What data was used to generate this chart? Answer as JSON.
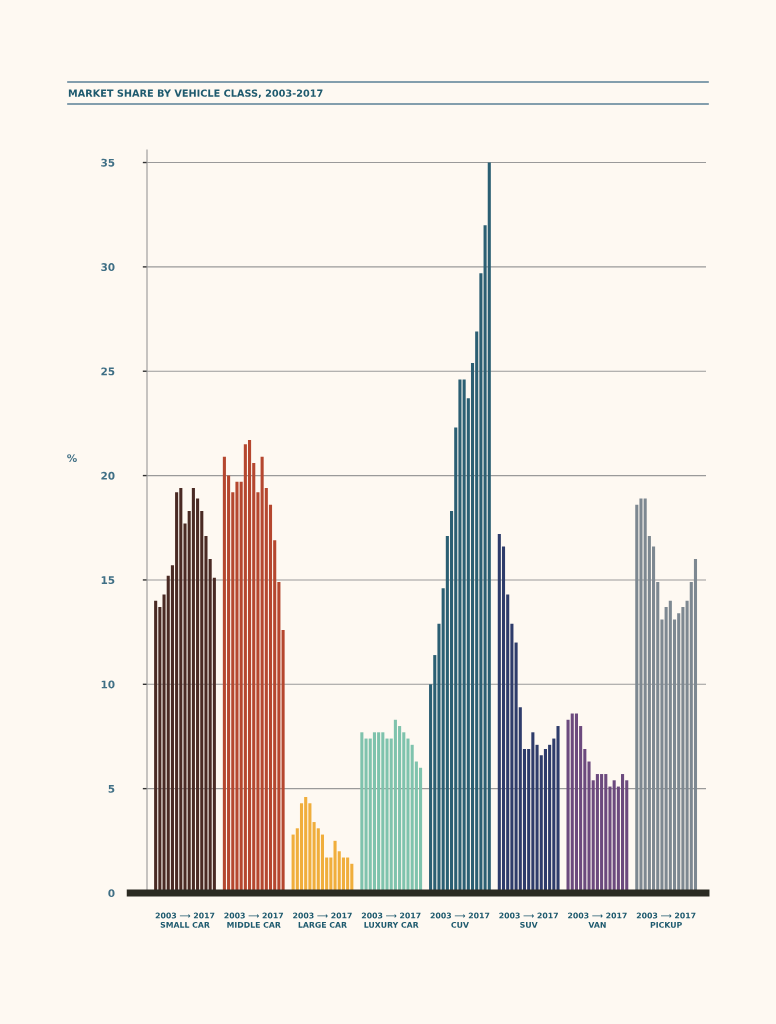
{
  "chart_data": {
    "type": "bar",
    "title": "MARKET SHARE BY VEHICLE CLASS, 2003-2017",
    "ylabel": "%",
    "categories": [
      "2003 ⟶ 2017\nSMALL CAR",
      "2003 ⟶ 2017\nMIDDLE CAR",
      "2003 ⟶ 2017\nLARGE CAR",
      "2003 ⟶ 2017\nLUXURY CAR",
      "2003 ⟶ 2017\nCUV",
      "2003 ⟶ 2017\nSUV",
      "2003 ⟶ 2017\nVAN",
      "2003 ⟶ 2017\nPICKUP"
    ],
    "ylim": [
      0,
      35.6
    ],
    "yticks": [
      0,
      5,
      10,
      15,
      20,
      25,
      30,
      35
    ],
    "grid": "y",
    "legend": false,
    "series": [
      {
        "colors": [
          "#4a2a24",
          "#b5472f",
          "#f0ae3c",
          "#7fc3ad",
          "#2b5f73",
          "#2e3c6b",
          "#6c4a7e",
          "#7d8891"
        ],
        "values": [
          14.0,
          20.9,
          2.8,
          7.7,
          10.0,
          17.2,
          8.3,
          18.6
        ]
      },
      {
        "colors": [
          "#4a2a24",
          "#b5472f",
          "#f0ae3c",
          "#7fc3ad",
          "#2b5f73",
          "#2e3c6b",
          "#6c4a7e",
          "#7d8891"
        ],
        "values": [
          13.7,
          20.0,
          3.1,
          7.4,
          11.4,
          16.6,
          8.6,
          18.9
        ]
      },
      {
        "colors": [
          "#4a2a24",
          "#b5472f",
          "#f0ae3c",
          "#7fc3ad",
          "#2b5f73",
          "#2e3c6b",
          "#6c4a7e",
          "#7d8891"
        ],
        "values": [
          14.3,
          19.2,
          4.3,
          7.4,
          12.9,
          14.3,
          8.6,
          18.9
        ]
      },
      {
        "colors": [
          "#4a2a24",
          "#b5472f",
          "#f0ae3c",
          "#7fc3ad",
          "#2b5f73",
          "#2e3c6b",
          "#6c4a7e",
          "#7d8891"
        ],
        "values": [
          15.2,
          19.7,
          4.6,
          7.7,
          14.6,
          12.9,
          8.0,
          17.1
        ]
      },
      {
        "colors": [
          "#4a2a24",
          "#b5472f",
          "#f0ae3c",
          "#7fc3ad",
          "#2b5f73",
          "#2e3c6b",
          "#6c4a7e",
          "#7d8891"
        ],
        "values": [
          15.7,
          19.7,
          4.3,
          7.7,
          17.1,
          12.0,
          6.9,
          16.6
        ]
      },
      {
        "colors": [
          "#4a2a24",
          "#b5472f",
          "#f0ae3c",
          "#7fc3ad",
          "#2b5f73",
          "#2e3c6b",
          "#6c4a7e",
          "#7d8891"
        ],
        "values": [
          19.2,
          21.5,
          3.4,
          7.7,
          18.3,
          8.9,
          6.3,
          14.9
        ]
      },
      {
        "colors": [
          "#4a2a24",
          "#b5472f",
          "#f0ae3c",
          "#7fc3ad",
          "#2b5f73",
          "#2e3c6b",
          "#6c4a7e",
          "#7d8891"
        ],
        "values": [
          19.4,
          21.7,
          3.1,
          7.4,
          22.3,
          6.9,
          5.4,
          13.1
        ]
      },
      {
        "colors": [
          "#4a2a24",
          "#b5472f",
          "#f0ae3c",
          "#7fc3ad",
          "#2b5f73",
          "#2e3c6b",
          "#6c4a7e",
          "#7d8891"
        ],
        "values": [
          17.7,
          20.6,
          2.8,
          7.4,
          24.6,
          6.9,
          5.7,
          13.7
        ]
      },
      {
        "colors": [
          "#4a2a24",
          "#b5472f",
          "#f0ae3c",
          "#7fc3ad",
          "#2b5f73",
          "#2e3c6b",
          "#6c4a7e",
          "#7d8891"
        ],
        "values": [
          18.3,
          19.2,
          1.7,
          8.3,
          24.6,
          7.7,
          5.7,
          14.0
        ]
      },
      {
        "colors": [
          "#4a2a24",
          "#b5472f",
          "#f0ae3c",
          "#7fc3ad",
          "#2b5f73",
          "#2e3c6b",
          "#6c4a7e",
          "#7d8891"
        ],
        "values": [
          19.4,
          20.9,
          1.7,
          8.0,
          23.7,
          7.1,
          5.7,
          13.1
        ]
      },
      {
        "colors": [
          "#4a2a24",
          "#b5472f",
          "#f0ae3c",
          "#7fc3ad",
          "#2b5f73",
          "#2e3c6b",
          "#6c4a7e",
          "#7d8891"
        ],
        "values": [
          18.9,
          19.4,
          2.5,
          7.7,
          25.4,
          6.6,
          5.1,
          13.4
        ]
      },
      {
        "colors": [
          "#4a2a24",
          "#b5472f",
          "#f0ae3c",
          "#7fc3ad",
          "#2b5f73",
          "#2e3c6b",
          "#6c4a7e",
          "#7d8891"
        ],
        "values": [
          18.3,
          18.6,
          2.0,
          7.4,
          26.9,
          6.9,
          5.4,
          13.7
        ]
      },
      {
        "colors": [
          "#4a2a24",
          "#b5472f",
          "#f0ae3c",
          "#7fc3ad",
          "#2b5f73",
          "#2e3c6b",
          "#6c4a7e",
          "#7d8891"
        ],
        "values": [
          17.1,
          16.9,
          1.7,
          7.1,
          29.7,
          7.1,
          5.1,
          14.0
        ]
      },
      {
        "colors": [
          "#4a2a24",
          "#b5472f",
          "#f0ae3c",
          "#7fc3ad",
          "#2b5f73",
          "#2e3c6b",
          "#6c4a7e",
          "#7d8891"
        ],
        "values": [
          16.0,
          14.9,
          1.7,
          6.3,
          32.0,
          7.4,
          5.7,
          14.9
        ]
      },
      {
        "colors": [
          "#4a2a24",
          "#b5472f",
          "#f0ae3c",
          "#7fc3ad",
          "#2b5f73",
          "#2e3c6b",
          "#6c4a7e",
          "#7d8891"
        ],
        "values": [
          15.1,
          12.6,
          1.4,
          6.0,
          35.0,
          8.0,
          5.4,
          16.0
        ]
      }
    ]
  }
}
